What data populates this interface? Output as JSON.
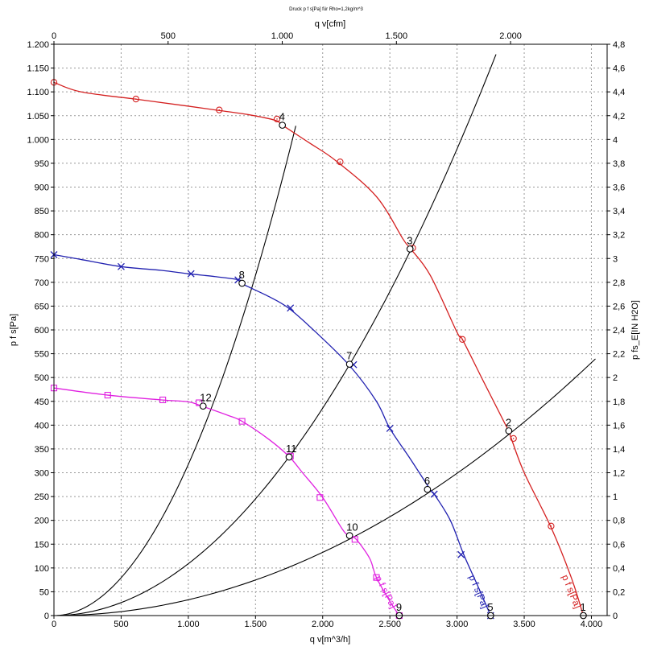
{
  "chart_data": {
    "type": "line",
    "title": "Druck p f s[Pa] für Rho=1,2kg/m^3",
    "top_axis": {
      "label": "q v[cfm]",
      "range": [
        0,
        2423
      ],
      "ticks": [
        0,
        500,
        1000,
        1500,
        2000
      ],
      "tick_labels": [
        "0",
        "500",
        "1.000",
        "1.500",
        "2.000"
      ]
    },
    "xaxis": {
      "label": "q v[m^3/h]",
      "range": [
        0,
        4117
      ],
      "ticks": [
        0,
        500,
        1000,
        1500,
        2000,
        2500,
        3000,
        3500,
        4000
      ],
      "tick_labels": [
        "0",
        "500",
        "1.000",
        "1.500",
        "2.000",
        "2.500",
        "3.000",
        "3.500",
        "4.000"
      ]
    },
    "yaxis_left": {
      "label": "p f s[Pa]",
      "range": [
        0,
        1200
      ],
      "ticks": [
        0,
        50,
        100,
        150,
        200,
        250,
        300,
        350,
        400,
        450,
        500,
        550,
        600,
        650,
        700,
        750,
        800,
        850,
        900,
        950,
        1000,
        1050,
        1100,
        1150,
        1200
      ],
      "tick_labels": [
        "0",
        "50",
        "100",
        "150",
        "200",
        "250",
        "300",
        "350",
        "400",
        "450",
        "500",
        "550",
        "600",
        "650",
        "700",
        "750",
        "800",
        "850",
        "900",
        "950",
        "1.000",
        "1.050",
        "1.100",
        "1.150",
        "1.200"
      ]
    },
    "yaxis_right": {
      "label": "p fs_E[IN H2O]",
      "range": [
        0,
        4.8
      ],
      "ticks": [
        0,
        0.2,
        0.4,
        0.6,
        0.8,
        1.0,
        1.2,
        1.4,
        1.6,
        1.8,
        2.0,
        2.2,
        2.4,
        2.6,
        2.8,
        3.0,
        3.2,
        3.4,
        3.6,
        3.8,
        4.0,
        4.2,
        4.4,
        4.6,
        4.8
      ],
      "tick_labels": [
        "0",
        "0,2",
        "0,4",
        "0,6",
        "0,8",
        "1",
        "1,2",
        "1,4",
        "1,6",
        "1,8",
        "2",
        "2,2",
        "2,4",
        "2,6",
        "2,8",
        "3",
        "3,2",
        "3,4",
        "3,6",
        "3,8",
        "4",
        "4,2",
        "4,4",
        "4,6",
        "4,8"
      ]
    },
    "grid": true,
    "series": [
      {
        "name": "p f s[Pa]",
        "color": "#d42020",
        "marker": "circle",
        "points": [
          [
            0,
            1120
          ],
          [
            200,
            1100
          ],
          [
            600,
            1085
          ],
          [
            1000,
            1070
          ],
          [
            1200,
            1062
          ],
          [
            1450,
            1052
          ],
          [
            1650,
            1040
          ],
          [
            1700,
            1030
          ],
          [
            1900,
            993
          ],
          [
            2100,
            955
          ],
          [
            2400,
            880
          ],
          [
            2600,
            790
          ],
          [
            2650,
            772
          ],
          [
            2800,
            715
          ],
          [
            3000,
            595
          ],
          [
            3040,
            580
          ],
          [
            3200,
            490
          ],
          [
            3380,
            390
          ],
          [
            3400,
            375
          ],
          [
            3500,
            300
          ],
          [
            3700,
            185
          ],
          [
            3850,
            80
          ],
          [
            3940,
            0
          ]
        ],
        "marker_points": [
          [
            0,
            1120
          ],
          [
            610,
            1085
          ],
          [
            1230,
            1062
          ],
          [
            1660,
            1043
          ],
          [
            2130,
            953
          ],
          [
            2670,
            772
          ],
          [
            3040,
            580
          ],
          [
            3420,
            372
          ],
          [
            3700,
            188
          ],
          [
            3940,
            0
          ]
        ]
      },
      {
        "name": "p f s[Pa]",
        "color": "#2020b0",
        "marker": "x",
        "points": [
          [
            0,
            758
          ],
          [
            200,
            748
          ],
          [
            500,
            733
          ],
          [
            800,
            725
          ],
          [
            1000,
            718
          ],
          [
            1200,
            712
          ],
          [
            1380,
            705
          ],
          [
            1400,
            697
          ],
          [
            1600,
            670
          ],
          [
            1750,
            645
          ],
          [
            1950,
            595
          ],
          [
            2200,
            525
          ],
          [
            2400,
            450
          ],
          [
            2500,
            393
          ],
          [
            2650,
            330
          ],
          [
            2800,
            265
          ],
          [
            2830,
            255
          ],
          [
            2950,
            200
          ],
          [
            3050,
            128
          ],
          [
            3150,
            65
          ],
          [
            3250,
            0
          ]
        ],
        "marker_points": [
          [
            0,
            758
          ],
          [
            500,
            733
          ],
          [
            1020,
            718
          ],
          [
            1370,
            705
          ],
          [
            1760,
            646
          ],
          [
            2230,
            527
          ],
          [
            2500,
            393
          ],
          [
            2830,
            255
          ],
          [
            3030,
            128
          ],
          [
            3250,
            0
          ]
        ]
      },
      {
        "name": "p f s[Pa]",
        "color": "#e020e0",
        "marker": "square",
        "points": [
          [
            0,
            478
          ],
          [
            400,
            463
          ],
          [
            800,
            453
          ],
          [
            1000,
            449
          ],
          [
            1100,
            440
          ],
          [
            1300,
            420
          ],
          [
            1400,
            408
          ],
          [
            1600,
            370
          ],
          [
            1750,
            334
          ],
          [
            1850,
            300
          ],
          [
            2000,
            248
          ],
          [
            2150,
            180
          ],
          [
            2200,
            168
          ],
          [
            2250,
            160
          ],
          [
            2350,
            120
          ],
          [
            2400,
            80
          ],
          [
            2500,
            30
          ],
          [
            2570,
            0
          ]
        ],
        "marker_points": [
          [
            0,
            478
          ],
          [
            400,
            463
          ],
          [
            810,
            453
          ],
          [
            1080,
            447
          ],
          [
            1400,
            408
          ],
          [
            1760,
            335
          ],
          [
            1980,
            248
          ],
          [
            2240,
            160
          ],
          [
            2400,
            80
          ],
          [
            2570,
            0
          ]
        ]
      }
    ],
    "system_curves": [
      {
        "k": 0.0003175,
        "x_end": 1800
      },
      {
        "k": 0.0001089,
        "x_end": 3290
      },
      {
        "k": 3.32e-05,
        "x_end": 4030
      }
    ],
    "operating_points": [
      {
        "label": "1",
        "x": 3940,
        "y": 0
      },
      {
        "label": "2",
        "x": 3385,
        "y": 388
      },
      {
        "label": "3",
        "x": 2650,
        "y": 770
      },
      {
        "label": "4",
        "x": 1700,
        "y": 1030
      },
      {
        "label": "5",
        "x": 3250,
        "y": 0
      },
      {
        "label": "6",
        "x": 2780,
        "y": 265
      },
      {
        "label": "7",
        "x": 2200,
        "y": 528
      },
      {
        "label": "8",
        "x": 1400,
        "y": 698
      },
      {
        "label": "9",
        "x": 2570,
        "y": 0
      },
      {
        "label": "10",
        "x": 2200,
        "y": 168
      },
      {
        "label": "11",
        "x": 1750,
        "y": 333
      },
      {
        "label": "12",
        "x": 1110,
        "y": 440
      }
    ]
  }
}
